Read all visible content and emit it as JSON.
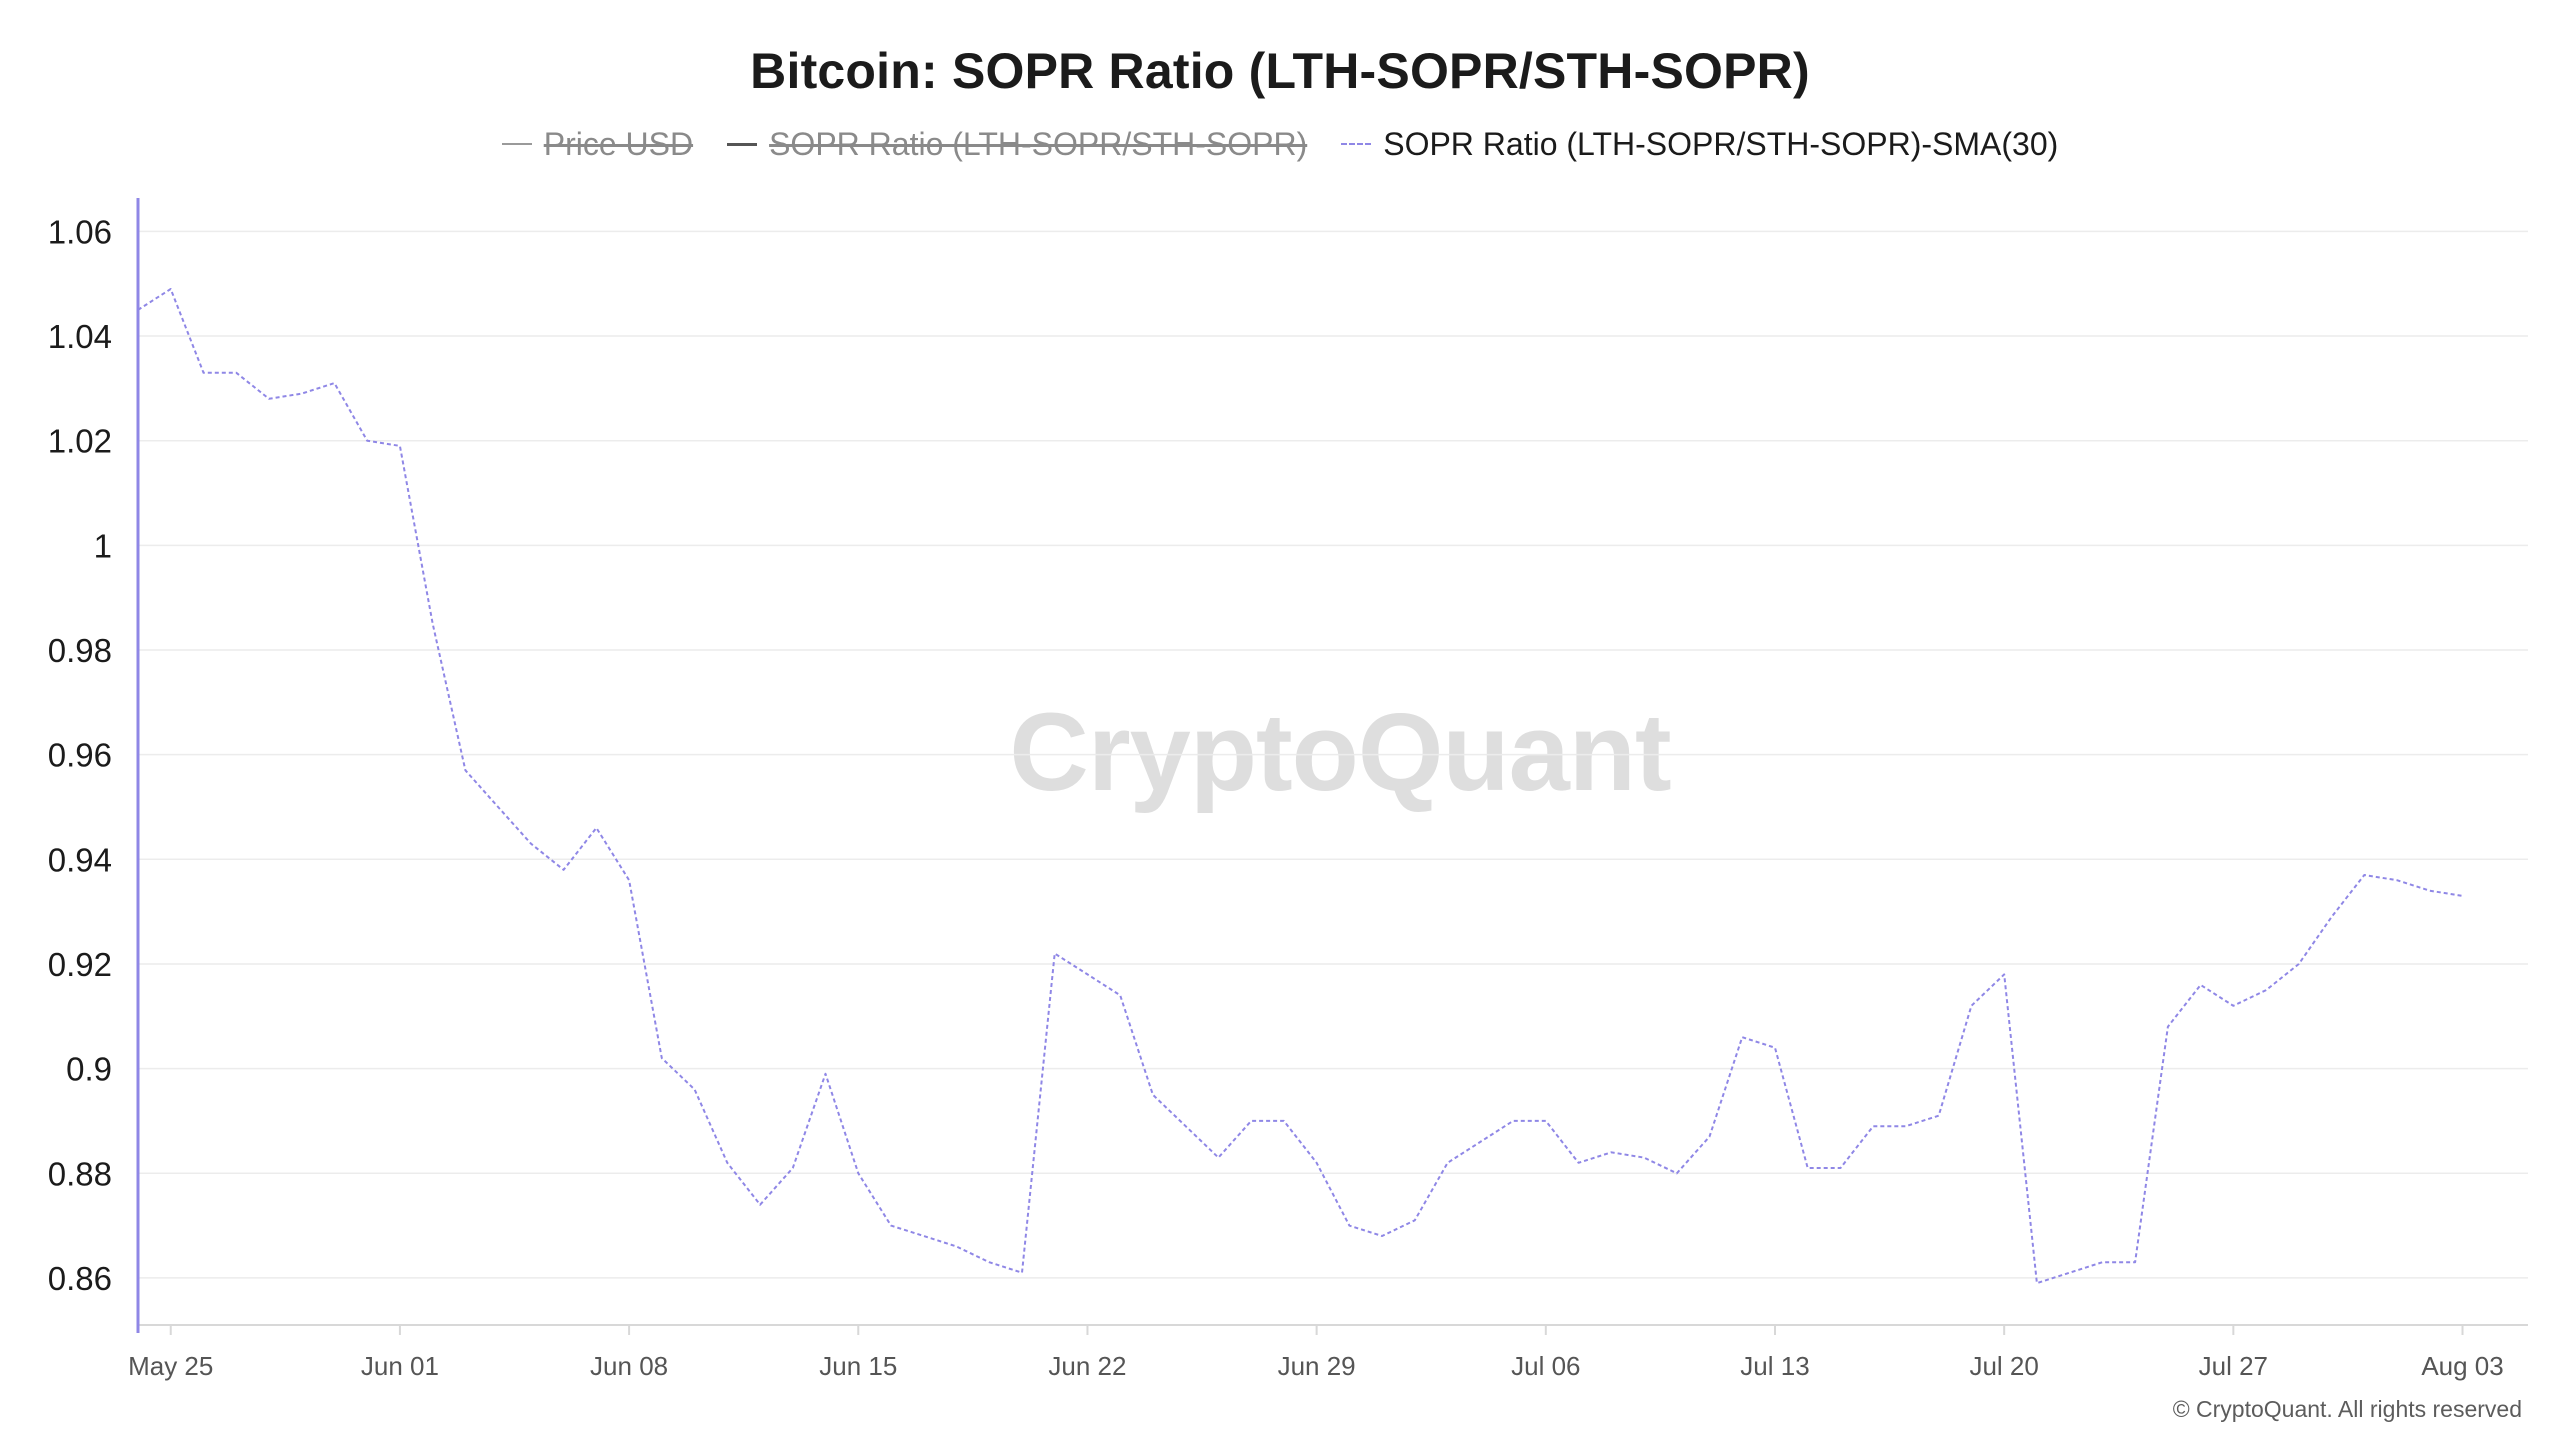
{
  "header": {
    "title": "Bitcoin: SOPR Ratio (LTH-SOPR/STH-SOPR)"
  },
  "legend": [
    {
      "label": "Price USD",
      "hidden": true,
      "color": "#9a9a9a",
      "style": "solid"
    },
    {
      "label": "SOPR Ratio (LTH-SOPR/STH-SOPR)",
      "hidden": true,
      "color": "#555555",
      "style": "solid"
    },
    {
      "label": "SOPR Ratio (LTH-SOPR/STH-SOPR)-SMA(30)",
      "hidden": false,
      "color": "#8f87e6",
      "style": "dashed"
    }
  ],
  "watermark": "CryptoQuant",
  "footer": {
    "copyright": "© CryptoQuant. All rights reserved"
  },
  "colors": {
    "series_line": "#8f87e6",
    "left_axis_line": "#8f87e6",
    "grid": "#ececec",
    "axis": "#d8d8d8"
  },
  "chart_data": {
    "type": "line",
    "title": "Bitcoin: SOPR Ratio (LTH-SOPR/STH-SOPR)",
    "xlabel": "",
    "ylabel": "",
    "ylim": [
      0.851,
      1.066
    ],
    "yticks": [
      {
        "label": "1.06",
        "value": 1.06
      },
      {
        "label": "1.04",
        "value": 1.04
      },
      {
        "label": "1.02",
        "value": 1.02
      },
      {
        "label": "1",
        "value": 1.0
      },
      {
        "label": "0.98",
        "value": 0.98
      },
      {
        "label": "0.96",
        "value": 0.96
      },
      {
        "label": "0.94",
        "value": 0.94
      },
      {
        "label": "0.92",
        "value": 0.92
      },
      {
        "label": "0.9",
        "value": 0.9
      },
      {
        "label": "0.88",
        "value": 0.88
      },
      {
        "label": "0.86",
        "value": 0.86
      }
    ],
    "x_start": "2025-05-24",
    "x_end": "2025-08-05",
    "xticks": [
      {
        "label": "May 25",
        "date": "2025-05-25"
      },
      {
        "label": "Jun 01",
        "date": "2025-06-01"
      },
      {
        "label": "Jun 08",
        "date": "2025-06-08"
      },
      {
        "label": "Jun 15",
        "date": "2025-06-15"
      },
      {
        "label": "Jun 22",
        "date": "2025-06-22"
      },
      {
        "label": "Jun 29",
        "date": "2025-06-29"
      },
      {
        "label": "Jul 06",
        "date": "2025-07-06"
      },
      {
        "label": "Jul 13",
        "date": "2025-07-13"
      },
      {
        "label": "Jul 20",
        "date": "2025-07-20"
      },
      {
        "label": "Jul 27",
        "date": "2025-07-27"
      },
      {
        "label": "Aug 03",
        "date": "2025-08-03"
      }
    ],
    "grid": true,
    "legend_position": "top-center",
    "series": [
      {
        "name": "SOPR Ratio (LTH-SOPR/STH-SOPR)-SMA(30)",
        "style": "dashed",
        "x": [
          "2025-05-24",
          "2025-05-25",
          "2025-05-26",
          "2025-05-27",
          "2025-05-28",
          "2025-05-29",
          "2025-05-30",
          "2025-05-31",
          "2025-06-01",
          "2025-06-02",
          "2025-06-03",
          "2025-06-04",
          "2025-06-05",
          "2025-06-06",
          "2025-06-07",
          "2025-06-08",
          "2025-06-09",
          "2025-06-10",
          "2025-06-11",
          "2025-06-12",
          "2025-06-13",
          "2025-06-14",
          "2025-06-15",
          "2025-06-16",
          "2025-06-17",
          "2025-06-18",
          "2025-06-19",
          "2025-06-20",
          "2025-06-21",
          "2025-06-22",
          "2025-06-23",
          "2025-06-24",
          "2025-06-25",
          "2025-06-26",
          "2025-06-27",
          "2025-06-28",
          "2025-06-29",
          "2025-06-30",
          "2025-07-01",
          "2025-07-02",
          "2025-07-03",
          "2025-07-04",
          "2025-07-05",
          "2025-07-06",
          "2025-07-07",
          "2025-07-08",
          "2025-07-09",
          "2025-07-10",
          "2025-07-11",
          "2025-07-12",
          "2025-07-13",
          "2025-07-14",
          "2025-07-15",
          "2025-07-16",
          "2025-07-17",
          "2025-07-18",
          "2025-07-19",
          "2025-07-20",
          "2025-07-21",
          "2025-07-22",
          "2025-07-23",
          "2025-07-24",
          "2025-07-25",
          "2025-07-26",
          "2025-07-27",
          "2025-07-28",
          "2025-07-29",
          "2025-07-30",
          "2025-07-31",
          "2025-08-01",
          "2025-08-02",
          "2025-08-03"
        ],
        "values": [
          1.045,
          1.049,
          1.033,
          1.033,
          1.028,
          1.029,
          1.031,
          1.02,
          1.019,
          0.985,
          0.957,
          0.95,
          0.943,
          0.938,
          0.946,
          0.936,
          0.902,
          0.896,
          0.882,
          0.874,
          0.881,
          0.899,
          0.88,
          0.87,
          0.868,
          0.866,
          0.863,
          0.861,
          0.922,
          0.918,
          0.914,
          0.895,
          0.889,
          0.883,
          0.89,
          0.89,
          0.882,
          0.87,
          0.868,
          0.871,
          0.882,
          0.886,
          0.89,
          0.89,
          0.882,
          0.884,
          0.883,
          0.88,
          0.887,
          0.906,
          0.904,
          0.881,
          0.881,
          0.889,
          0.889,
          0.891,
          0.912,
          0.918,
          0.859,
          0.861,
          0.863,
          0.863,
          0.908,
          0.916,
          0.912,
          0.915,
          0.92,
          0.929,
          0.937,
          0.936,
          0.934,
          0.933
        ]
      }
    ]
  }
}
